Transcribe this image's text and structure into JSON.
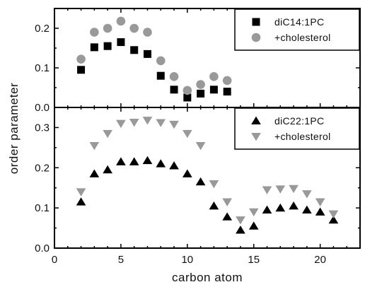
{
  "chart_data": [
    {
      "type": "scatter",
      "title": "",
      "xlabel": "carbon atom",
      "ylabel": "order parameter",
      "xlim": [
        0,
        23
      ],
      "ylim": [
        0.0,
        0.25
      ],
      "xticks": [
        0,
        5,
        10,
        15,
        20
      ],
      "yticks": [
        0.0,
        0.1,
        0.2
      ],
      "ytick_labels": [
        "0.0",
        "0.1",
        "0.2"
      ],
      "legend_position": "top-right",
      "series": [
        {
          "name": "diC14:1PC",
          "marker": "square",
          "color": "#000000",
          "x": [
            2,
            3,
            4,
            5,
            6,
            7,
            8,
            9,
            10,
            11,
            12,
            13
          ],
          "y": [
            0.095,
            0.152,
            0.155,
            0.165,
            0.145,
            0.135,
            0.08,
            0.045,
            0.025,
            0.035,
            0.045,
            0.04
          ]
        },
        {
          "name": "+cholesterol",
          "marker": "circle",
          "color": "#999999",
          "x": [
            2,
            3,
            4,
            5,
            6,
            7,
            8,
            9,
            10,
            11,
            12,
            13
          ],
          "y": [
            0.122,
            0.19,
            0.2,
            0.218,
            0.2,
            0.19,
            0.118,
            0.078,
            0.043,
            0.058,
            0.078,
            0.068
          ]
        }
      ]
    },
    {
      "type": "scatter",
      "title": "",
      "xlabel": "carbon atom",
      "ylabel": "order parameter",
      "xlim": [
        0,
        23
      ],
      "ylim": [
        0.0,
        0.35
      ],
      "xticks": [
        0,
        5,
        10,
        15,
        20
      ],
      "xtick_labels": [
        "0",
        "5",
        "10",
        "15",
        "20"
      ],
      "yticks": [
        0.0,
        0.1,
        0.2,
        0.3
      ],
      "ytick_labels": [
        "0.0",
        "0.1",
        "0.2",
        "0.3"
      ],
      "legend_position": "top-right",
      "series": [
        {
          "name": "diC22:1PC",
          "marker": "triangle-up",
          "color": "#000000",
          "x": [
            2,
            3,
            4,
            5,
            6,
            7,
            8,
            9,
            10,
            11,
            12,
            13,
            14,
            15,
            16,
            17,
            18,
            19,
            20,
            21
          ],
          "y": [
            0.115,
            0.185,
            0.195,
            0.215,
            0.215,
            0.218,
            0.21,
            0.205,
            0.185,
            0.165,
            0.105,
            0.078,
            0.045,
            0.055,
            0.095,
            0.1,
            0.105,
            0.095,
            0.09,
            0.07
          ]
        },
        {
          "name": "+cholesterol",
          "marker": "triangle-down",
          "color": "#999999",
          "x": [
            2,
            3,
            4,
            5,
            6,
            7,
            8,
            9,
            10,
            11,
            12,
            13,
            14,
            15,
            16,
            17,
            18,
            19,
            20,
            21
          ],
          "y": [
            0.14,
            0.255,
            0.285,
            0.31,
            0.313,
            0.318,
            0.312,
            0.308,
            0.285,
            0.255,
            0.16,
            0.115,
            0.07,
            0.09,
            0.145,
            0.147,
            0.148,
            0.135,
            0.115,
            0.085
          ]
        }
      ]
    }
  ]
}
